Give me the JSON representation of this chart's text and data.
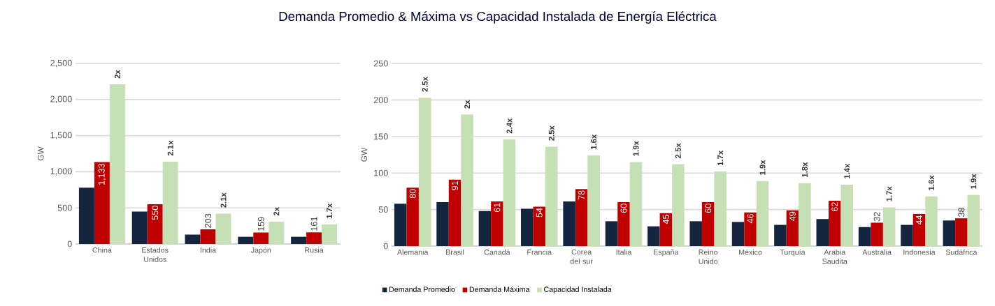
{
  "chart_data": [
    {
      "type": "bar",
      "title": "Demanda Promedio & Máxima vs Capacidad Instalada de Energía Eléctrica",
      "ylabel": "GW",
      "categories": [
        "China",
        "Estados Unidos",
        "India",
        "Japón",
        "Rusia"
      ],
      "series": [
        {
          "color": "#14263f",
          "values": [
            780,
            450,
            130,
            100,
            100
          ]
        },
        {
          "color": "#c00000",
          "values": [
            1133,
            550,
            203,
            159,
            161
          ],
          "value_labels": [
            "1,133",
            "550",
            "203",
            "159",
            "161"
          ]
        },
        {
          "color": "#c5e0b4",
          "values": [
            2210,
            1140,
            420,
            310,
            270
          ]
        }
      ],
      "annotations": [
        "2x",
        "2.1x",
        "2.1x",
        "2x",
        "1.7x"
      ],
      "ylim": [
        0,
        2500
      ],
      "yticks": [
        {
          "value": 0,
          "label": "0"
        },
        {
          "value": 500,
          "label": "500"
        },
        {
          "value": 1000,
          "label": "1,000"
        },
        {
          "value": 1500,
          "label": "1,500"
        },
        {
          "value": 2000,
          "label": "2,000"
        },
        {
          "value": 2500,
          "label": "2,500"
        }
      ],
      "grid": "y"
    },
    {
      "type": "bar",
      "ylabel": "GW",
      "categories": [
        "Alemania",
        "Brasil",
        "Canadá",
        "Francia",
        "Corea del sur",
        "Italia",
        "España",
        "Reino Unido",
        "México",
        "Turquía",
        "Arabia Saudita",
        "Australia",
        "Indonesia",
        "Sudáfrica"
      ],
      "series": [
        {
          "name": "Demanda Promedio",
          "color": "#14263f",
          "values": [
            58,
            60,
            48,
            51,
            61,
            34,
            27,
            34,
            33,
            29,
            37,
            26,
            29,
            35
          ]
        },
        {
          "name": "Demanda Máxima",
          "color": "#c00000",
          "values": [
            80,
            91,
            61,
            54,
            78,
            60,
            45,
            60,
            46,
            49,
            62,
            32,
            44,
            38
          ],
          "value_labels": [
            "80",
            "91",
            "61",
            "54",
            "78",
            "60",
            "45",
            "60",
            "46",
            "49",
            "62",
            "32",
            "44",
            "38"
          ]
        },
        {
          "name": "Capacidad Instalada",
          "color": "#c5e0b4",
          "values": [
            203,
            180,
            146,
            136,
            124,
            115,
            112,
            102,
            89,
            86,
            84,
            53,
            68,
            70
          ]
        }
      ],
      "annotations": [
        "2.5x",
        "2x",
        "2.4x",
        "2.5x",
        "1.6x",
        "1.9x",
        "2.5x",
        "1.7x",
        "1.9x",
        "1.8x",
        "1.4x",
        "1.7x",
        "1.6x",
        "1.9x"
      ],
      "ylim": [
        0,
        250
      ],
      "yticks": [
        0,
        50,
        100,
        150,
        200,
        250
      ],
      "grid": "y",
      "legend": "bottom"
    }
  ]
}
